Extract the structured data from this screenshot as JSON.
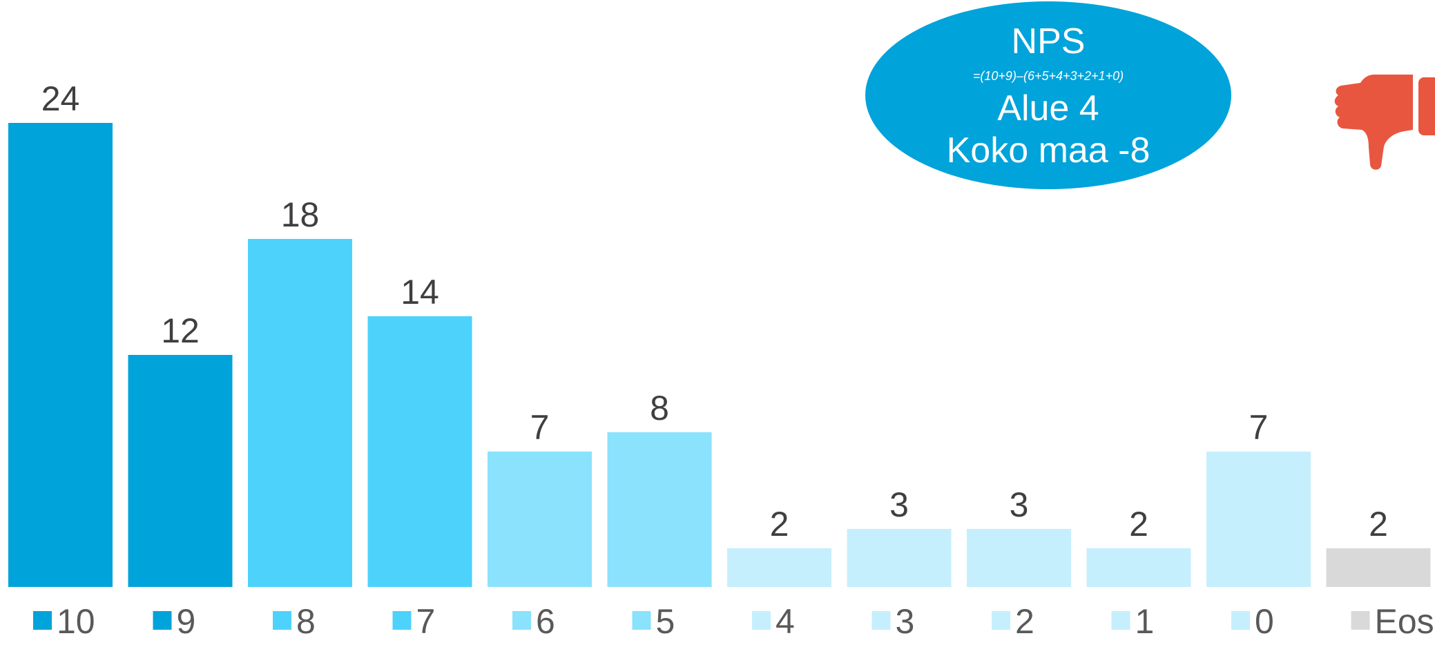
{
  "chart_data": {
    "type": "bar",
    "categories": [
      "10",
      "9",
      "8",
      "7",
      "6",
      "5",
      "4",
      "3",
      "2",
      "1",
      "0",
      "Eos"
    ],
    "values": [
      24,
      12,
      18,
      14,
      7,
      8,
      2,
      3,
      3,
      2,
      7,
      2
    ],
    "colors": [
      "#00a3da",
      "#00a3da",
      "#4dd2fb",
      "#4dd2fb",
      "#8ae2fc",
      "#8ae2fc",
      "#c6effd",
      "#c6effd",
      "#c6effd",
      "#c6effd",
      "#c6effd",
      "#d9d9d9"
    ],
    "ylim": [
      0,
      25
    ],
    "grid": false,
    "legend_position": "bottom",
    "data_labels": true
  },
  "nps": {
    "title": "NPS",
    "formula": "=(10+9)–(6+5+4+3+2+1+0)",
    "area": "Alue 4",
    "country": "Koko maa -8",
    "color": "#00a3da"
  },
  "thumb": {
    "icon": "thumbs-down-icon",
    "color": "#e8563f"
  }
}
